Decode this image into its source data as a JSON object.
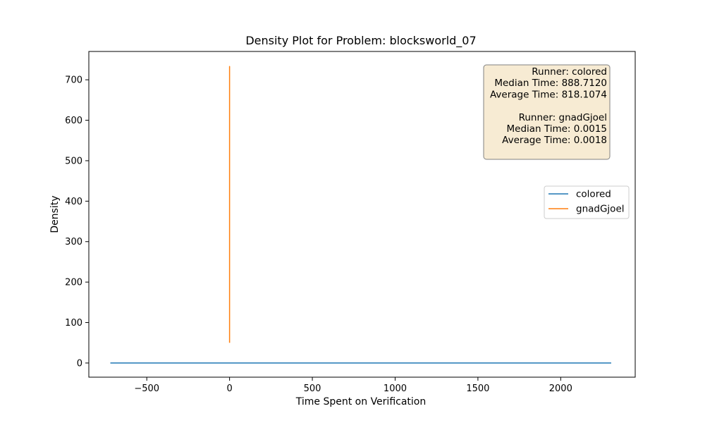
{
  "chart_data": {
    "type": "line",
    "title": "Density Plot for Problem: blocksworld_07",
    "xlabel": "Time Spent on Verification",
    "ylabel": "Density",
    "xlim": [
      -850,
      2450
    ],
    "ylim": [
      -35,
      770
    ],
    "xticks": [
      -500,
      0,
      500,
      1000,
      1500,
      2000
    ],
    "xtick_labels": [
      "−500",
      "0",
      "500",
      "1000",
      "1500",
      "2000"
    ],
    "yticks": [
      0,
      100,
      200,
      300,
      400,
      500,
      600,
      700
    ],
    "ytick_labels": [
      "0",
      "100",
      "200",
      "300",
      "400",
      "500",
      "600",
      "700"
    ],
    "grid": false,
    "legend_position": "center-right",
    "series": [
      {
        "name": "colored",
        "color": "#1f77b4",
        "x": [
          -720,
          0,
          500,
          1000,
          1500,
          2000,
          2305
        ],
        "y": [
          0.0004,
          0.0004,
          0.0004,
          0.0005,
          0.0005,
          0.0004,
          0.0004
        ]
      },
      {
        "name": "gnadGjoel",
        "color": "#ff7f0e",
        "x": [
          0.0004,
          0.0008,
          0.0012,
          0.0015,
          0.0018,
          0.0024,
          0.003
        ],
        "y": [
          50,
          300,
          600,
          733,
          600,
          300,
          50
        ]
      }
    ],
    "stats_box": {
      "position": "top-right",
      "background": "#f5e6c8",
      "lines": [
        "Runner: colored",
        "Median Time: 888.7120",
        "Average Time: 818.1074",
        "",
        "Runner: gnadGjoel",
        "Median Time: 0.0015",
        "Average Time: 0.0018"
      ]
    }
  }
}
